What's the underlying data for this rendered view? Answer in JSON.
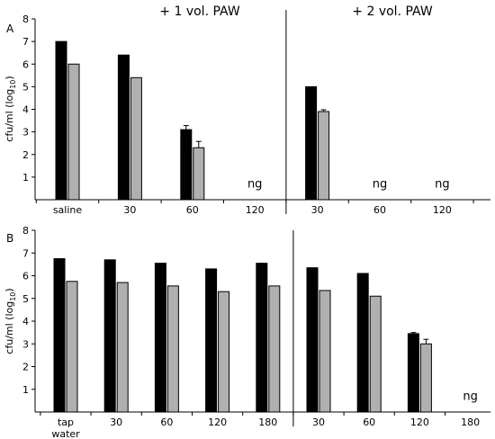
{
  "group_labels": [
    "+ 1 vol. PAW",
    "+ 2 vol. PAW"
  ],
  "chart_data": [
    {
      "type": "bar",
      "panel_label": "A",
      "ylabel": "cfu/ml (log10)",
      "ylabel_main": "cfu/ml (log",
      "ylabel_sub": "10",
      "ylabel_end": ")",
      "ylim": [
        0,
        8
      ],
      "yticks": [
        "1",
        "2",
        "3",
        "4",
        "5",
        "6",
        "7",
        "8"
      ],
      "grid": false,
      "categories": [
        "saline",
        "30",
        "60",
        "120",
        "30",
        "60",
        "120"
      ],
      "group_split_after_index": 3,
      "series": [
        {
          "color": "#000000",
          "values": [
            7.0,
            6.4,
            3.1,
            null,
            5.0,
            null,
            null
          ],
          "errors": [
            0,
            0,
            0.18,
            0,
            0,
            0,
            0
          ]
        },
        {
          "color": "#b0b0b0",
          "values": [
            6.0,
            5.4,
            2.3,
            null,
            3.9,
            null,
            null
          ],
          "errors": [
            0,
            0,
            0.28,
            0,
            0.08,
            0,
            0
          ]
        }
      ],
      "annotations": [
        {
          "category_index": 3,
          "text": "ng"
        },
        {
          "category_index": 5,
          "text": "ng"
        },
        {
          "category_index": 6,
          "text": "ng"
        }
      ]
    },
    {
      "type": "bar",
      "panel_label": "B",
      "ylabel": "cfu/ml (log10)",
      "ylabel_main": "cfu/ml (log",
      "ylabel_sub": "10",
      "ylabel_end": ")",
      "ylim": [
        0,
        8
      ],
      "yticks": [
        "1",
        "2",
        "3",
        "4",
        "5",
        "6",
        "7",
        "8"
      ],
      "grid": false,
      "categories": [
        "tap water",
        "30",
        "60",
        "120",
        "180",
        "30",
        "60",
        "120",
        "180"
      ],
      "category_lines": [
        [
          "tap",
          "water"
        ],
        [
          "30"
        ],
        [
          "60"
        ],
        [
          "120"
        ],
        [
          "180"
        ],
        [
          "30"
        ],
        [
          "60"
        ],
        [
          "120"
        ],
        [
          "180"
        ]
      ],
      "group_split_after_index": 4,
      "series": [
        {
          "color": "#000000",
          "values": [
            6.75,
            6.7,
            6.55,
            6.3,
            6.55,
            6.35,
            6.1,
            3.45,
            null
          ],
          "errors": [
            0,
            0,
            0,
            0,
            0,
            0,
            0,
            0.05,
            0
          ]
        },
        {
          "color": "#b0b0b0",
          "values": [
            5.75,
            5.7,
            5.55,
            5.3,
            5.55,
            5.35,
            5.1,
            3.0,
            null
          ],
          "errors": [
            0,
            0,
            0,
            0,
            0,
            0,
            0,
            0.2,
            0
          ]
        }
      ],
      "annotations": [
        {
          "category_index": 8,
          "text": "ng"
        }
      ]
    }
  ]
}
